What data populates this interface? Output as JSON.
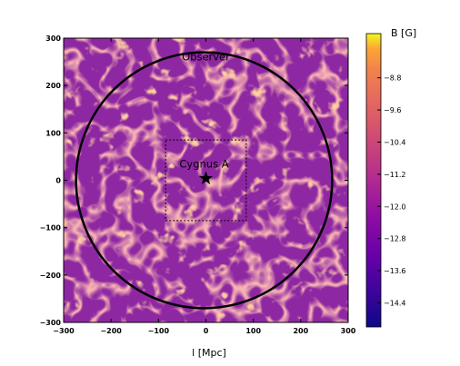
{
  "chart_data": {
    "type": "heatmap",
    "title": "",
    "xlabel": "l [Mpc]",
    "ylabel": "",
    "xlim": [
      -300,
      300
    ],
    "ylim": [
      -300,
      300
    ],
    "x_ticks": [
      -300,
      -200,
      -100,
      0,
      100,
      200,
      300
    ],
    "y_ticks": [
      300,
      200,
      100,
      0,
      -100,
      -200,
      -300
    ],
    "colorbar": {
      "label": "B [G]",
      "range": [
        -15.0,
        -7.7
      ],
      "ticks": [
        "-8.8",
        "-9.6",
        "-10.4",
        "-11.2",
        "-12.0",
        "-12.8",
        "-13.6",
        "-14.4"
      ],
      "tick_values": [
        -8.8,
        -9.6,
        -10.4,
        -11.2,
        -12.0,
        -12.8,
        -13.6,
        -14.4
      ],
      "colormap": "plasma"
    },
    "annotations": {
      "observer_label": "Observer",
      "source_label": "Cygnus A"
    },
    "source_position": [
      0,
      0
    ],
    "observer_circle_radius": 270,
    "inner_box": {
      "x": [
        -85,
        85
      ],
      "y": [
        -85,
        85
      ]
    },
    "colors": {
      "background_field": "#9a2ea0",
      "filament": "#f6a85e",
      "circle": "#000000",
      "star": "#000000"
    }
  }
}
